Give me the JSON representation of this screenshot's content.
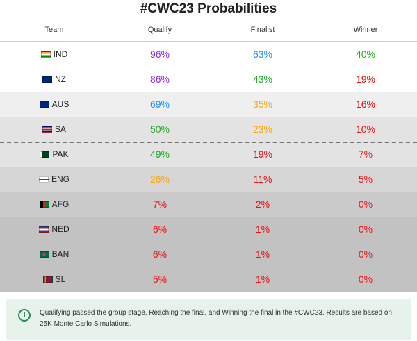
{
  "title": "#CWC23 Probabilities",
  "columns": [
    "Team",
    "Qualify",
    "Finalist",
    "Winner"
  ],
  "chart_data": {
    "type": "table",
    "title": "#CWC23 Probabilities",
    "columns": [
      "Team",
      "Qualify",
      "Finalist",
      "Winner"
    ],
    "rows": [
      {
        "team": "IND",
        "flag": "india-flag-icon",
        "qualify": "96%",
        "finalist": "63%",
        "winner": "40%"
      },
      {
        "team": "NZ",
        "flag": "new-zealand-flag-icon",
        "qualify": "86%",
        "finalist": "43%",
        "winner": "19%"
      },
      {
        "team": "AUS",
        "flag": "australia-flag-icon",
        "qualify": "69%",
        "finalist": "35%",
        "winner": "16%"
      },
      {
        "team": "SA",
        "flag": "south-africa-flag-icon",
        "qualify": "50%",
        "finalist": "23%",
        "winner": "10%"
      },
      {
        "team": "PAK",
        "flag": "pakistan-flag-icon",
        "qualify": "49%",
        "finalist": "19%",
        "winner": "7%"
      },
      {
        "team": "ENG",
        "flag": "england-flag-icon",
        "qualify": "26%",
        "finalist": "11%",
        "winner": "5%"
      },
      {
        "team": "AFG",
        "flag": "afghanistan-flag-icon",
        "qualify": "7%",
        "finalist": "2%",
        "winner": "0%"
      },
      {
        "team": "NED",
        "flag": "netherlands-flag-icon",
        "qualify": "6%",
        "finalist": "1%",
        "winner": "0%"
      },
      {
        "team": "BAN",
        "flag": "bangladesh-flag-icon",
        "qualify": "6%",
        "finalist": "1%",
        "winner": "0%"
      },
      {
        "team": "SL",
        "flag": "sri-lanka-flag-icon",
        "qualify": "5%",
        "finalist": "1%",
        "winner": "0%"
      }
    ],
    "qualification_cutoff_after_row": 4
  },
  "row_backgrounds": [
    "#ffffff",
    "#ffffff",
    "#efefef",
    "#e3e3e3",
    "#e3e3e3",
    "#d6d6d6",
    "#cacaca",
    "#c2c2c2",
    "#c2c2c2",
    "#c2c2c2"
  ],
  "value_colors": {
    "96%": "#8a2be2",
    "86%": "#8a2be2",
    "69%": "#1e90ff",
    "63%": "#1e90ff",
    "50%": "#22aa22",
    "49%": "#22aa22",
    "43%": "#22aa22",
    "40%": "#22aa22",
    "35%": "#ffa500",
    "26%": "#ffa500",
    "23%": "#ffa500",
    "low": "#ee1111"
  },
  "flag_colors": {
    "india-flag-icon": "linear-gradient(#ff9933 0 33%, #ffffff 33% 66%, #138808 66%)",
    "new-zealand-flag-icon": "#00247d",
    "australia-flag-icon": "#00247d",
    "south-africa-flag-icon": "linear-gradient(#e03c31 0 33%, #ffffff 33% 40%, #007749 40% 60%, #ffffff 60% 67%, #001489 67%)",
    "pakistan-flag-icon": "linear-gradient(90deg, #ffffff 0 25%, #01411c 25%)",
    "england-flag-icon": "linear-gradient(#ffffff 0 40%, #ce1124 40% 60%, #ffffff 60%)",
    "afghanistan-flag-icon": "linear-gradient(90deg, #000000 0 33%, #d32011 33% 66%, #007a36 66%)",
    "netherlands-flag-icon": "linear-gradient(#ae1c28 0 33%, #ffffff 33% 66%, #21468b 66%)",
    "bangladesh-flag-icon": "radial-gradient(circle at 45% 50%, #f42a41 0 28%, #006a4e 29%)",
    "sri-lanka-flag-icon": "linear-gradient(90deg, #005641 0 12%, #ff7f00 12% 24%, #8d153a 24%)"
  },
  "note": {
    "icon": "info-icon",
    "text": "Qualifying passed the group stage, Reaching the final, and Winning the final in the #CWC23. Results are based on 25K Monte Carlo Simulations."
  }
}
